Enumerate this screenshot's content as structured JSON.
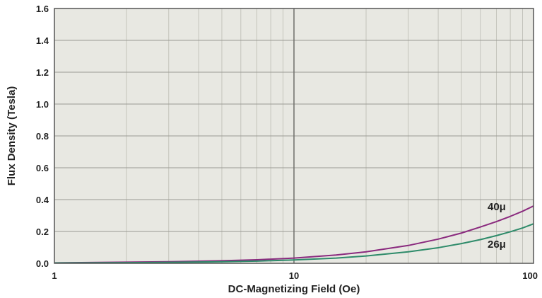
{
  "chart_data": {
    "type": "line",
    "title": "",
    "xlabel": "DC-Magnetizing Field (Oe)",
    "ylabel": "Flux Density (Tesla)",
    "x_scale": "log",
    "xlim": [
      1,
      100
    ],
    "ylim": [
      0,
      1.6
    ],
    "x_ticks": [
      {
        "value": 1,
        "label": "1"
      },
      {
        "value": 10,
        "label": "10"
      },
      {
        "value": 100,
        "label": "100"
      }
    ],
    "y_ticks": [
      {
        "value": 0,
        "label": "0.0"
      },
      {
        "value": 0.2,
        "label": "0.2"
      },
      {
        "value": 0.4,
        "label": "0.4"
      },
      {
        "value": 0.6,
        "label": "0.6"
      },
      {
        "value": 0.8,
        "label": "0.8"
      },
      {
        "value": 1.0,
        "label": "1.0"
      },
      {
        "value": 1.2,
        "label": "1.2"
      },
      {
        "value": 1.4,
        "label": "1.4"
      },
      {
        "value": 1.6,
        "label": "1.6"
      }
    ],
    "grid": true,
    "background_color": "#e8e8e2",
    "series": [
      {
        "name": "40μ",
        "color": "#8a2a7e",
        "x": [
          1,
          2,
          3,
          5,
          7,
          10,
          15,
          20,
          30,
          40,
          50,
          60,
          70,
          80,
          90,
          100
        ],
        "y": [
          0.003,
          0.007,
          0.01,
          0.016,
          0.022,
          0.033,
          0.052,
          0.072,
          0.112,
          0.152,
          0.19,
          0.228,
          0.262,
          0.295,
          0.327,
          0.36
        ]
      },
      {
        "name": "26μ",
        "color": "#2e8b6a",
        "x": [
          1,
          2,
          3,
          5,
          7,
          10,
          15,
          20,
          30,
          40,
          50,
          60,
          70,
          80,
          90,
          100
        ],
        "y": [
          0.002,
          0.004,
          0.006,
          0.01,
          0.014,
          0.021,
          0.033,
          0.046,
          0.072,
          0.098,
          0.124,
          0.149,
          0.174,
          0.198,
          0.222,
          0.248
        ]
      }
    ]
  }
}
